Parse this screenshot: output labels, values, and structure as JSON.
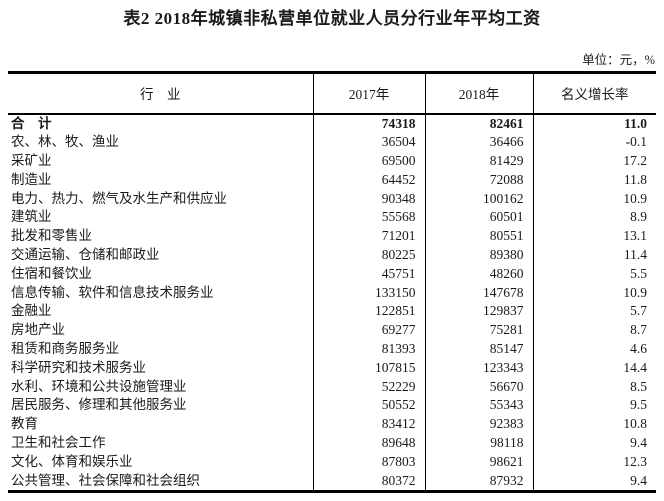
{
  "title": "表2  2018年城镇非私营单位就业人员分行业年平均工资",
  "unit_note": "单位：元，%",
  "table": {
    "columns": [
      "行　业",
      "2017年",
      "2018年",
      "名义增长率"
    ],
    "rows": [
      {
        "industry": "合　计",
        "y2017": "74318",
        "y2018": "82461",
        "growth": "11.0",
        "bold": true
      },
      {
        "industry": "农、林、牧、渔业",
        "y2017": "36504",
        "y2018": "36466",
        "growth": "-0.1",
        "bold": false
      },
      {
        "industry": "采矿业",
        "y2017": "69500",
        "y2018": "81429",
        "growth": "17.2",
        "bold": false
      },
      {
        "industry": "制造业",
        "y2017": "64452",
        "y2018": "72088",
        "growth": "11.8",
        "bold": false
      },
      {
        "industry": "电力、热力、燃气及水生产和供应业",
        "y2017": "90348",
        "y2018": "100162",
        "growth": "10.9",
        "bold": false
      },
      {
        "industry": "建筑业",
        "y2017": "55568",
        "y2018": "60501",
        "growth": "8.9",
        "bold": false
      },
      {
        "industry": "批发和零售业",
        "y2017": "71201",
        "y2018": "80551",
        "growth": "13.1",
        "bold": false
      },
      {
        "industry": "交通运输、仓储和邮政业",
        "y2017": "80225",
        "y2018": "89380",
        "growth": "11.4",
        "bold": false
      },
      {
        "industry": "住宿和餐饮业",
        "y2017": "45751",
        "y2018": "48260",
        "growth": "5.5",
        "bold": false
      },
      {
        "industry": "信息传输、软件和信息技术服务业",
        "y2017": "133150",
        "y2018": "147678",
        "growth": "10.9",
        "bold": false
      },
      {
        "industry": "金融业",
        "y2017": "122851",
        "y2018": "129837",
        "growth": "5.7",
        "bold": false
      },
      {
        "industry": "房地产业",
        "y2017": "69277",
        "y2018": "75281",
        "growth": "8.7",
        "bold": false
      },
      {
        "industry": "租赁和商务服务业",
        "y2017": "81393",
        "y2018": "85147",
        "growth": "4.6",
        "bold": false
      },
      {
        "industry": "科学研究和技术服务业",
        "y2017": "107815",
        "y2018": "123343",
        "growth": "14.4",
        "bold": false
      },
      {
        "industry": "水利、环境和公共设施管理业",
        "y2017": "52229",
        "y2018": "56670",
        "growth": "8.5",
        "bold": false
      },
      {
        "industry": "居民服务、修理和其他服务业",
        "y2017": "50552",
        "y2018": "55343",
        "growth": "9.5",
        "bold": false
      },
      {
        "industry": "教育",
        "y2017": "83412",
        "y2018": "92383",
        "growth": "10.8",
        "bold": false
      },
      {
        "industry": "卫生和社会工作",
        "y2017": "89648",
        "y2018": "98118",
        "growth": "9.4",
        "bold": false
      },
      {
        "industry": "文化、体育和娱乐业",
        "y2017": "87803",
        "y2018": "98621",
        "growth": "12.3",
        "bold": false
      },
      {
        "industry": "公共管理、社会保障和社会组织",
        "y2017": "80372",
        "y2018": "87932",
        "growth": "9.4",
        "bold": false
      }
    ]
  },
  "chart_data": {
    "type": "table",
    "title": "表2 2018年城镇非私营单位就业人员分行业年平均工资",
    "unit": "元，%",
    "columns": [
      "行业",
      "2017年",
      "2018年",
      "名义增长率"
    ],
    "categories": [
      "合计",
      "农、林、牧、渔业",
      "采矿业",
      "制造业",
      "电力、热力、燃气及水生产和供应业",
      "建筑业",
      "批发和零售业",
      "交通运输、仓储和邮政业",
      "住宿和餐饮业",
      "信息传输、软件和信息技术服务业",
      "金融业",
      "房地产业",
      "租赁和商务服务业",
      "科学研究和技术服务业",
      "水利、环境和公共设施管理业",
      "居民服务、修理和其他服务业",
      "教育",
      "卫生和社会工作",
      "文化、体育和娱乐业",
      "公共管理、社会保障和社会组织"
    ],
    "series": [
      {
        "name": "2017年",
        "values": [
          74318,
          36504,
          69500,
          64452,
          90348,
          55568,
          71201,
          80225,
          45751,
          133150,
          122851,
          69277,
          81393,
          107815,
          52229,
          50552,
          83412,
          89648,
          87803,
          80372
        ]
      },
      {
        "name": "2018年",
        "values": [
          82461,
          36466,
          81429,
          72088,
          100162,
          60501,
          80551,
          89380,
          48260,
          147678,
          129837,
          75281,
          85147,
          123343,
          56670,
          55343,
          92383,
          98118,
          98621,
          87932
        ]
      },
      {
        "name": "名义增长率",
        "values": [
          11.0,
          -0.1,
          17.2,
          11.8,
          10.9,
          8.9,
          13.1,
          11.4,
          5.5,
          10.9,
          5.7,
          8.7,
          4.6,
          14.4,
          8.5,
          9.5,
          10.8,
          9.4,
          12.3,
          9.4
        ]
      }
    ]
  }
}
